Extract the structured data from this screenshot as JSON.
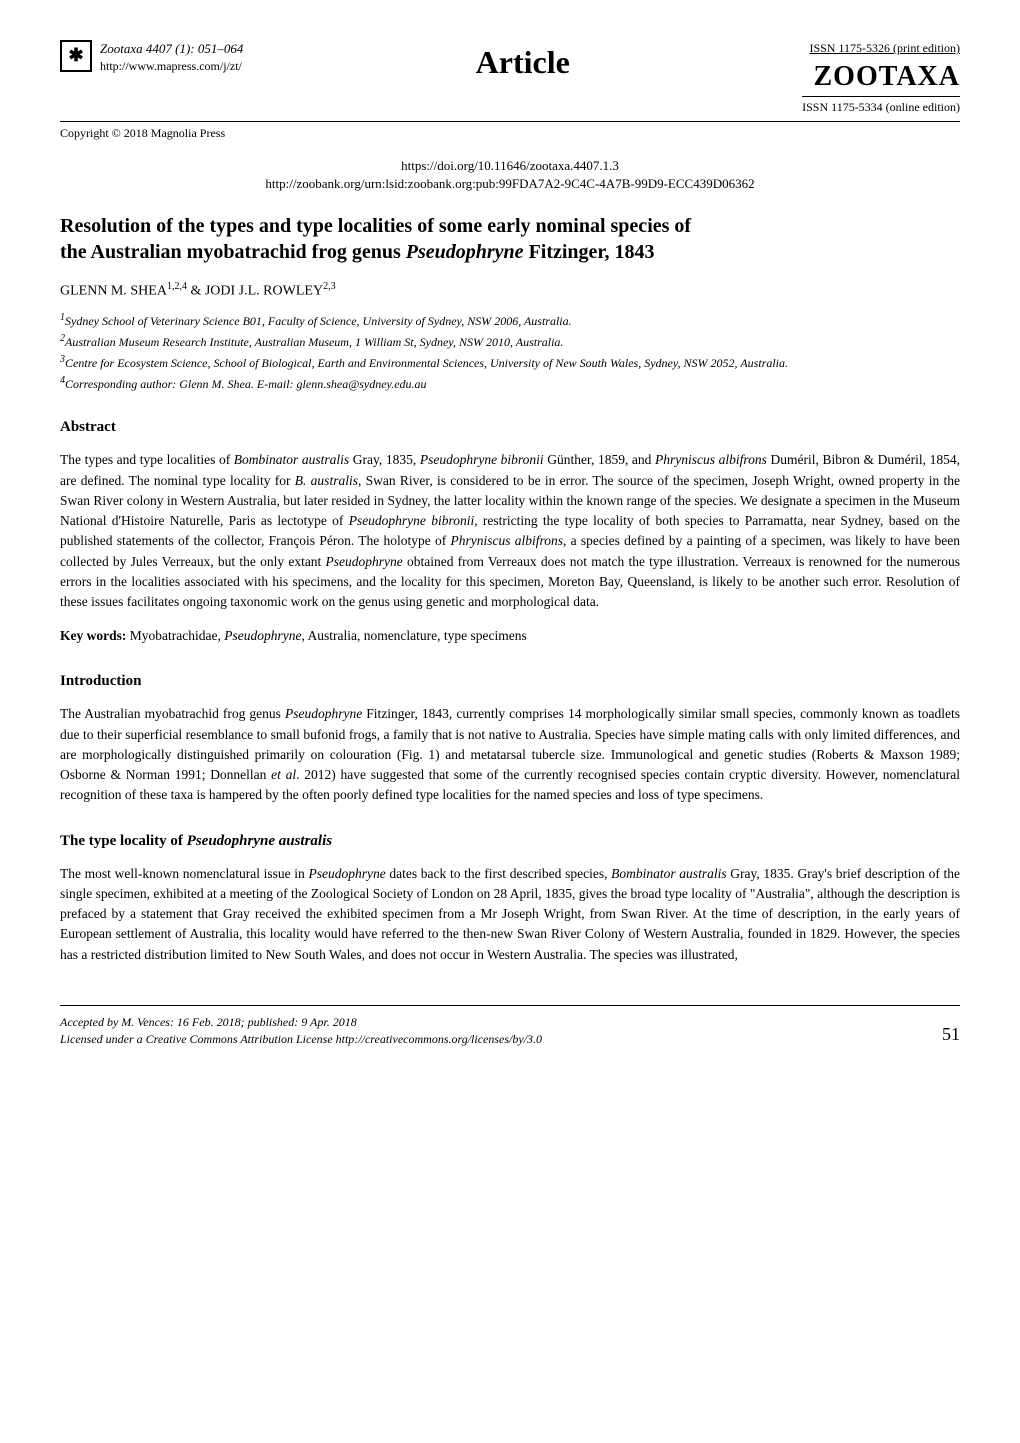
{
  "header": {
    "journal_name": "Zootaxa",
    "issue_info": "4407 (1): 051–064",
    "url": "http://www.mapress.com/j/zt/",
    "copyright": "Copyright © 2018 Magnolia Press",
    "article_label": "Article",
    "issn_print": "ISSN 1175-5326  (print edition)",
    "journal_logo": "ZOOTAXA",
    "issn_online": "ISSN 1175-5334 (online edition)"
  },
  "doi": {
    "doi_url": "https://doi.org/10.11646/zootaxa.4407.1.3",
    "zoobank_url": "http://zoobank.org/urn:lsid:zoobank.org:pub:99FDA7A2-9C4C-4A7B-99D9-ECC439D06362"
  },
  "title": {
    "line1": "Resolution of the types and type localities of some early nominal species of",
    "line2_pre": "the Australian myobatrachid frog genus ",
    "line2_italic": "Pseudophryne",
    "line2_post": " Fitzinger, 1843"
  },
  "authors": "GLENN M. SHEA",
  "authors_sup1": "1,2,4",
  "authors_amp": " & JODI J.L. ROWLEY",
  "authors_sup2": "2,3",
  "affiliations": {
    "a1": "Sydney School of Veterinary Science B01, Faculty of Science, University of Sydney, NSW 2006, Australia.",
    "a2": "Australian Museum Research Institute, Australian Museum, 1 William St, Sydney, NSW 2010, Australia.",
    "a3": "Centre for Ecosystem Science, School of Biological, Earth and Environmental Sciences, University of New South Wales, Sydney, NSW 2052, Australia.",
    "a4": "Corresponding author: Glenn M. Shea. E-mail: glenn.shea@sydney.edu.au"
  },
  "abstract": {
    "heading": "Abstract",
    "text_parts": [
      "The types and type localities of ",
      "Bombinator australis",
      " Gray, 1835, ",
      "Pseudophryne bibronii",
      " Günther, 1859, and ",
      "Phryniscus albifrons",
      " Duméril, Bibron & Duméril, 1854, are defined. The nominal type locality for ",
      "B. australis",
      ", Swan River, is considered to be in error. The source of the specimen, Joseph Wright, owned property in the Swan River colony in Western Australia, but later resided in Sydney, the latter locality within the known range of the species. We designate a specimen in the Museum National d'Histoire Naturelle, Paris as lectotype of ",
      "Pseudophryne bibronii,",
      " restricting the type locality of both species to Parramatta, near Sydney, based on the published statements of the collector, François Péron. The holotype of ",
      "Phryniscus albifrons",
      ", a species defined by a painting of a specimen, was likely to have been collected by Jules Verreaux, but the only extant ",
      "Pseudophryne",
      " obtained from Verreaux does not match the type illustration. Verreaux is renowned for the numerous errors in the localities associated with his specimens, and the locality for this specimen, Moreton Bay, Queensland, is likely to be another such error. Resolution of these issues facilitates ongoing taxonomic work on the genus using genetic and morphological data."
    ]
  },
  "keywords": {
    "label": "Key words:",
    "text_pre": " Myobatrachidae, ",
    "text_italic": "Pseudophryne",
    "text_post": ", Australia, nomenclature, type specimens"
  },
  "introduction": {
    "heading": "Introduction",
    "text_pre": "The Australian myobatrachid frog genus ",
    "text_italic1": "Pseudophryne",
    "text_mid1": " Fitzinger, 1843, currently comprises 14 morphologically similar small species, commonly known as toadlets due to their superficial resemblance to small bufonid frogs, a family that is not native to Australia. Species have simple mating calls with only limited differences, and are morphologically distinguished primarily on colouration (Fig. 1) and metatarsal tubercle size. Immunological and genetic studies (Roberts & Maxson 1989; Osborne & Norman 1991; Donnellan ",
    "text_italic2": "et al",
    "text_post": ". 2012) have suggested that some of the currently recognised species contain cryptic diversity. However, nomenclatural recognition of these taxa is hampered by the often poorly defined type localities for the named species and loss of type specimens."
  },
  "type_locality": {
    "heading_pre": "The type locality of ",
    "heading_italic": "Pseudophryne australis",
    "text_pre": "The most well-known nomenclatural issue in ",
    "text_italic1": "Pseudophryne",
    "text_mid1": " dates back to the first described species, ",
    "text_italic2": "Bombinator australis",
    "text_post": " Gray, 1835. Gray's brief description of the single specimen, exhibited at a meeting of the Zoological Society of London on 28 April, 1835, gives the broad type locality of \"Australia\", although the description is prefaced by a statement that Gray received the exhibited specimen from a Mr Joseph Wright, from Swan River. At the time of description, in the early years of European settlement of Australia, this locality would have referred to the then-new Swan River Colony of Western Australia, founded in 1829. However, the species has a restricted distribution limited to New South Wales, and does  not  occur  in  Western  Australia.  The  species  was  illustrated,"
  },
  "footer": {
    "accepted": "Accepted by M. Vences: 16 Feb. 2018; published: 9 Apr. 2018",
    "license": "Licensed under a Creative Commons Attribution License http://creativecommons.org/licenses/by/3.0",
    "page_number": "51"
  }
}
